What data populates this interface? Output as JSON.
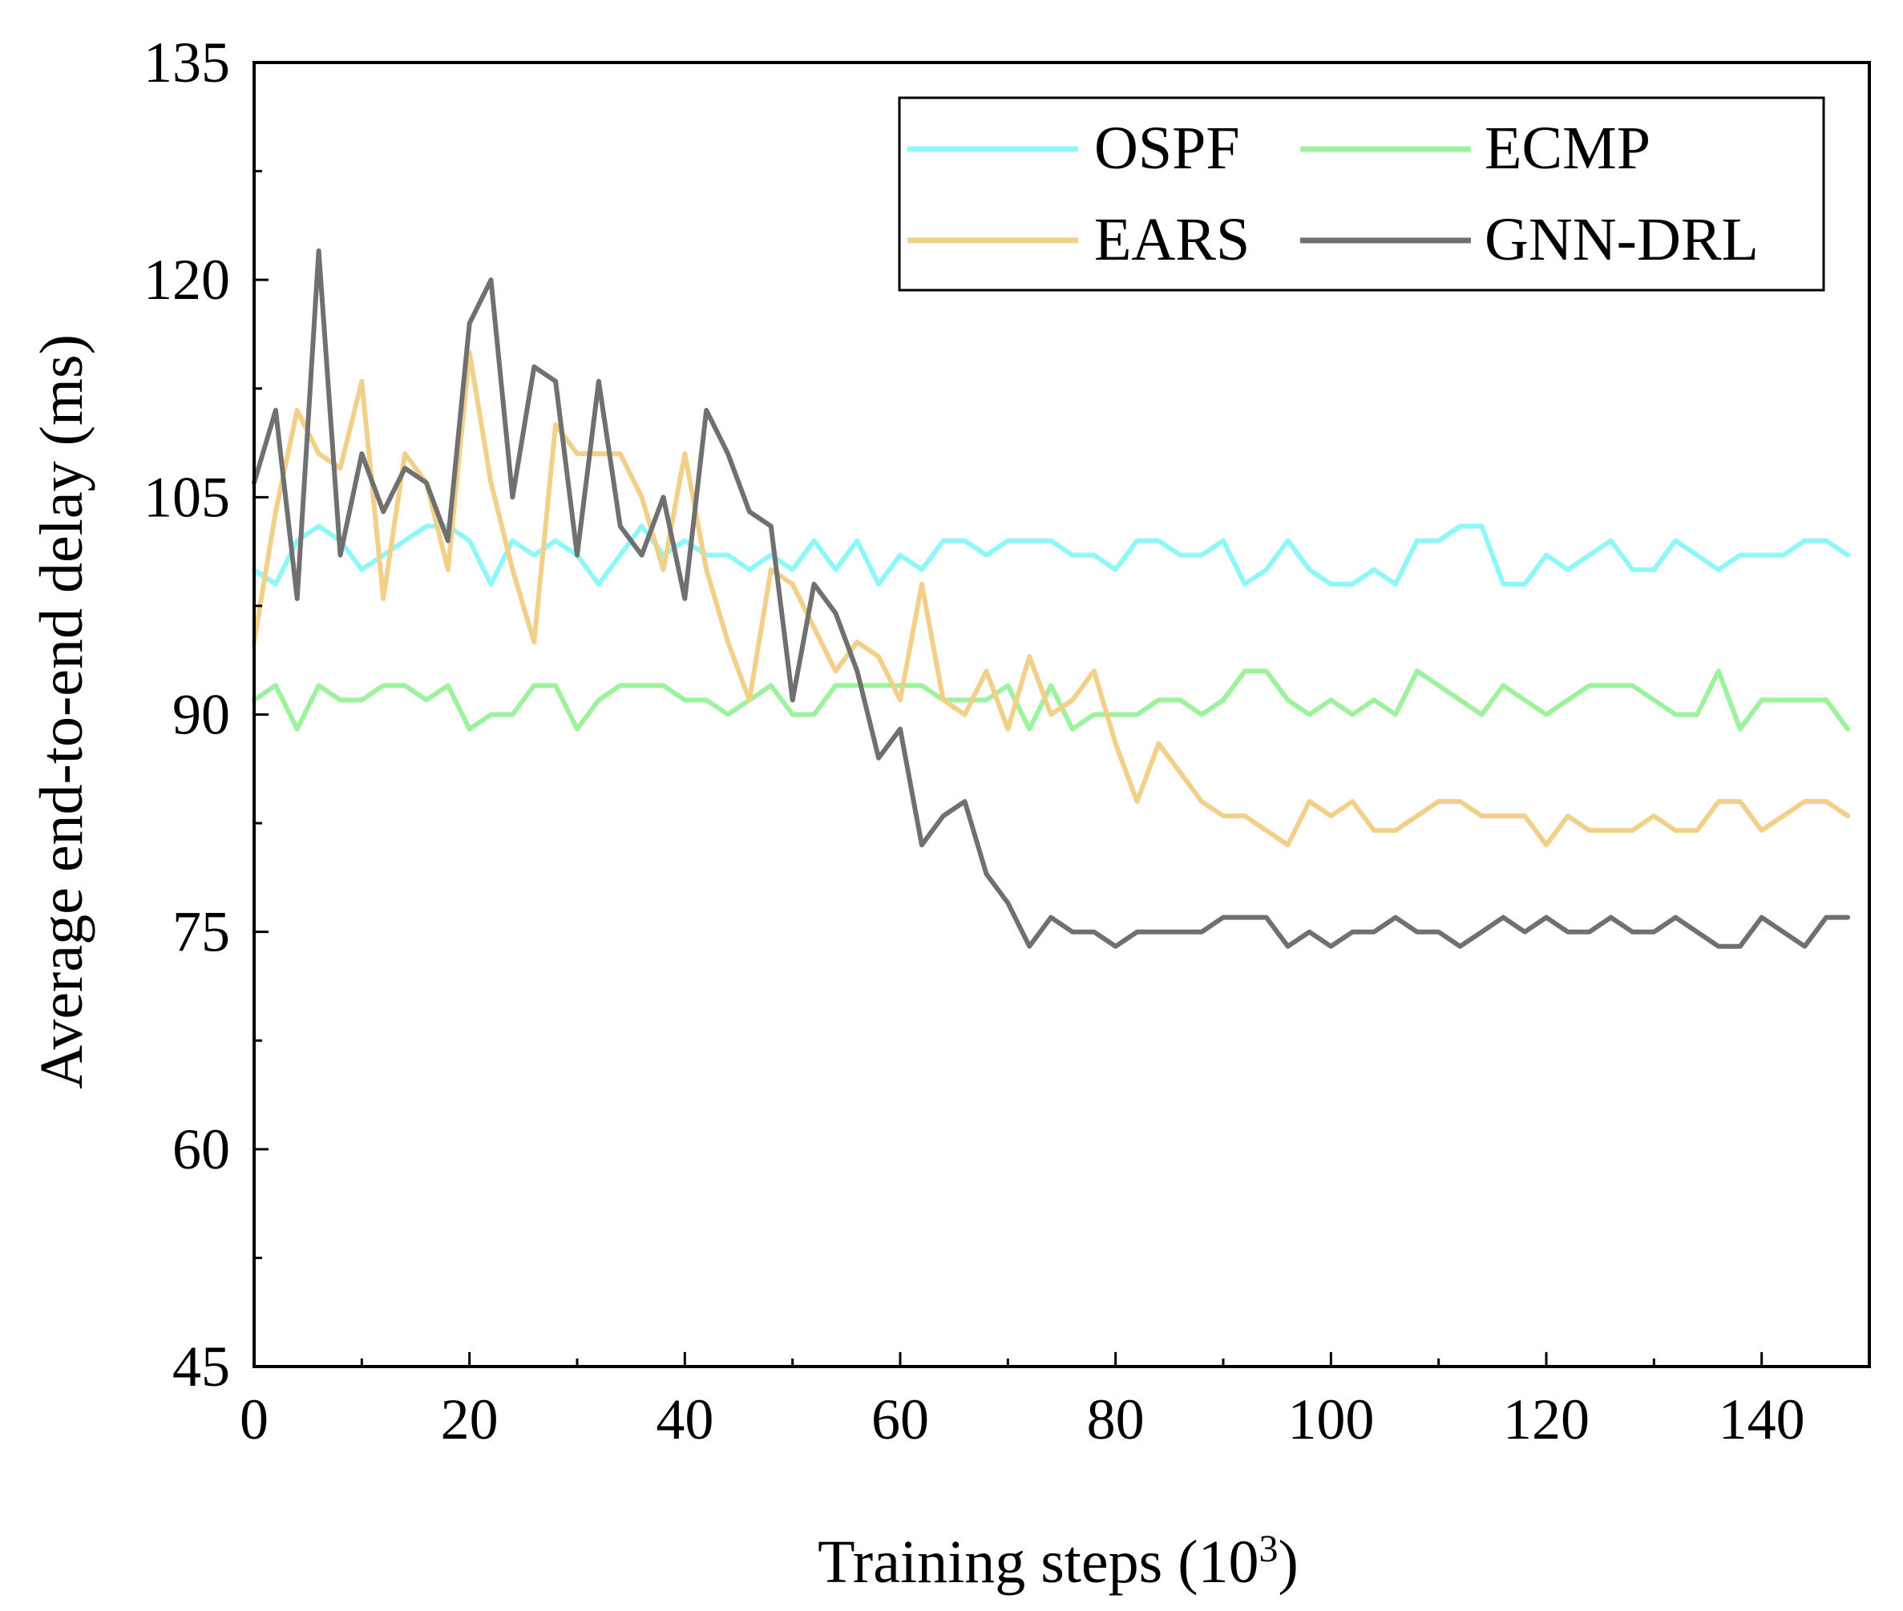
{
  "chart_data": {
    "type": "line",
    "title": "",
    "xlabel": "Training steps (10",
    "xlabel_sup": "3",
    "xlabel_close": ")",
    "ylabel": "Average end-to-end delay (ms)",
    "xlim": [
      0,
      150
    ],
    "ylim": [
      45,
      135
    ],
    "xticks": [
      0,
      20,
      40,
      60,
      80,
      100,
      120,
      140
    ],
    "xtick_labels": [
      "0",
      "20",
      "40",
      "60",
      "80",
      "100",
      "120",
      "140"
    ],
    "yticks": [
      45,
      60,
      75,
      90,
      105,
      120,
      135
    ],
    "ytick_labels": [
      "45",
      "60",
      "75",
      "90",
      "105",
      "120",
      "135"
    ],
    "grid": false,
    "legend_position": "top-right",
    "series": [
      {
        "name": "OSPF",
        "color": "#8ef7f7",
        "x": [
          0,
          2,
          4,
          6,
          8,
          10,
          12,
          14,
          16,
          18,
          20,
          22,
          24,
          26,
          28,
          30,
          32,
          34,
          36,
          38,
          40,
          42,
          44,
          46,
          48,
          50,
          52,
          54,
          56,
          58,
          60,
          62,
          64,
          66,
          68,
          70,
          72,
          74,
          76,
          78,
          80,
          82,
          84,
          86,
          88,
          90,
          92,
          94,
          96,
          98,
          100,
          102,
          104,
          106,
          108,
          110,
          112,
          114,
          116,
          118,
          120,
          122,
          124,
          126,
          128,
          130,
          132,
          134,
          136,
          138,
          140,
          142,
          144,
          146,
          148
        ],
        "y": [
          100,
          99,
          102,
          103,
          102,
          100,
          101,
          102,
          103,
          103,
          102,
          99,
          102,
          101,
          102,
          101,
          99,
          101,
          103,
          101,
          102,
          101,
          101,
          100,
          101,
          100,
          102,
          100,
          102,
          99,
          101,
          100,
          102,
          102,
          101,
          102,
          102,
          102,
          101,
          101,
          100,
          102,
          102,
          101,
          101,
          102,
          99,
          100,
          102,
          100,
          99,
          99,
          100,
          99,
          102,
          102,
          103,
          103,
          99,
          99,
          101,
          100,
          101,
          102,
          100,
          100,
          102,
          101,
          100,
          101,
          101,
          101,
          102,
          102,
          101
        ]
      },
      {
        "name": "ECMP",
        "color": "#9ef29e",
        "x": [
          0,
          2,
          4,
          6,
          8,
          10,
          12,
          14,
          16,
          18,
          20,
          22,
          24,
          26,
          28,
          30,
          32,
          34,
          36,
          38,
          40,
          42,
          44,
          46,
          48,
          50,
          52,
          54,
          56,
          58,
          60,
          62,
          64,
          66,
          68,
          70,
          72,
          74,
          76,
          78,
          80,
          82,
          84,
          86,
          88,
          90,
          92,
          94,
          96,
          98,
          100,
          102,
          104,
          106,
          108,
          110,
          112,
          114,
          116,
          118,
          120,
          122,
          124,
          126,
          128,
          130,
          132,
          134,
          136,
          138,
          140,
          142,
          144,
          146,
          148
        ],
        "y": [
          91,
          92,
          89,
          92,
          91,
          91,
          92,
          92,
          91,
          92,
          89,
          90,
          90,
          92,
          92,
          89,
          91,
          92,
          92,
          92,
          91,
          91,
          90,
          91,
          92,
          90,
          90,
          92,
          92,
          92,
          92,
          92,
          91,
          91,
          91,
          92,
          89,
          92,
          89,
          90,
          90,
          90,
          91,
          91,
          90,
          91,
          93,
          93,
          91,
          90,
          91,
          90,
          91,
          90,
          93,
          92,
          91,
          90,
          92,
          91,
          90,
          91,
          92,
          92,
          92,
          91,
          90,
          90,
          93,
          89,
          91,
          91,
          91,
          91,
          89
        ]
      },
      {
        "name": "EARS",
        "color": "#f2d089",
        "x": [
          0,
          2,
          4,
          6,
          8,
          10,
          12,
          14,
          16,
          18,
          20,
          22,
          24,
          26,
          28,
          30,
          32,
          34,
          36,
          38,
          40,
          42,
          44,
          46,
          48,
          50,
          52,
          54,
          56,
          58,
          60,
          62,
          64,
          66,
          68,
          70,
          72,
          74,
          76,
          78,
          80,
          82,
          84,
          86,
          88,
          90,
          92,
          94,
          96,
          98,
          100,
          102,
          104,
          106,
          108,
          110,
          112,
          114,
          116,
          118,
          120,
          122,
          124,
          126,
          128,
          130,
          132,
          134,
          136,
          138,
          140,
          142,
          144,
          146,
          148
        ],
        "y": [
          95,
          104,
          111,
          108,
          107,
          113,
          98,
          108,
          106,
          100,
          115,
          106,
          100,
          95,
          110,
          108,
          108,
          108,
          105,
          100,
          108,
          100,
          95,
          91,
          100,
          99,
          96,
          93,
          95,
          94,
          91,
          99,
          91,
          90,
          93,
          89,
          94,
          90,
          91,
          93,
          88,
          84,
          88,
          86,
          84,
          83,
          83,
          82,
          81,
          84,
          83,
          84,
          82,
          82,
          83,
          84,
          84,
          83,
          83,
          83,
          81,
          83,
          82,
          82,
          82,
          83,
          82,
          82,
          84,
          84,
          82,
          83,
          84,
          84,
          83
        ]
      },
      {
        "name": "GNN-DRL",
        "color": "#707070",
        "x": [
          0,
          2,
          4,
          6,
          8,
          10,
          12,
          14,
          16,
          18,
          20,
          22,
          24,
          26,
          28,
          30,
          32,
          34,
          36,
          38,
          40,
          42,
          44,
          46,
          48,
          50,
          52,
          54,
          56,
          58,
          60,
          62,
          64,
          66,
          68,
          70,
          72,
          74,
          76,
          78,
          80,
          82,
          84,
          86,
          88,
          90,
          92,
          94,
          96,
          98,
          100,
          102,
          104,
          106,
          108,
          110,
          112,
          114,
          116,
          118,
          120,
          122,
          124,
          126,
          128,
          130,
          132,
          134,
          136,
          138,
          140,
          142,
          144,
          146,
          148
        ],
        "y": [
          106,
          111,
          98,
          122,
          101,
          108,
          104,
          107,
          106,
          102,
          117,
          120,
          105,
          114,
          113,
          101,
          113,
          103,
          101,
          105,
          98,
          111,
          108,
          104,
          103,
          91,
          99,
          97,
          93,
          87,
          89,
          81,
          83,
          84,
          79,
          77,
          74,
          76,
          75,
          75,
          74,
          75,
          75,
          75,
          75,
          76,
          76,
          76,
          74,
          75,
          74,
          75,
          75,
          76,
          75,
          75,
          74,
          75,
          76,
          75,
          76,
          75,
          75,
          76,
          75,
          75,
          76,
          75,
          74,
          74,
          76,
          75,
          74,
          76,
          76
        ]
      }
    ]
  }
}
